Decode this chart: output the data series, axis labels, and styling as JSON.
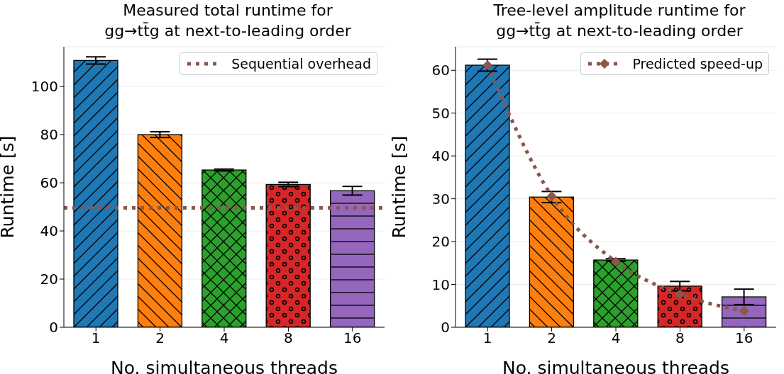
{
  "chart_data": [
    {
      "type": "bar",
      "title": "Measured total runtime for\ngg→tt̄g at next-to-leading order",
      "xlabel": "No. simultaneous threads",
      "ylabel": "Runtime [s]",
      "categories": [
        "1",
        "2",
        "4",
        "8",
        "16"
      ],
      "series": [
        {
          "type": "bar",
          "colors": [
            "#1f77b4",
            "#ff7f0e",
            "#2ca02c",
            "#d62728",
            "#9467bd"
          ],
          "values": [
            110.8,
            80.0,
            65.3,
            59.3,
            56.7
          ],
          "errors": [
            1.5,
            1.2,
            0.4,
            0.9,
            1.8
          ]
        }
      ],
      "ref_lines": [
        {
          "axis": "y",
          "value": 49.6,
          "label": "Sequential overhead",
          "color": "#8c564b",
          "line_style": "dotted"
        }
      ],
      "ylim": [
        0,
        116.5
      ],
      "yticks": [
        0,
        20,
        40,
        60,
        80,
        100
      ],
      "grid": "y",
      "legend": "top right"
    },
    {
      "type": "bar",
      "title": "Tree-level amplitude runtime for\ngg→tt̄g at next-to-leading order",
      "xlabel": "No. simultaneous threads",
      "ylabel": "Runtime [s]",
      "categories": [
        "1",
        "2",
        "4",
        "8",
        "16"
      ],
      "series": [
        {
          "type": "bar",
          "colors": [
            "#1f77b4",
            "#ff7f0e",
            "#2ca02c",
            "#d62728",
            "#9467bd"
          ],
          "values": [
            61.2,
            30.4,
            15.7,
            9.6,
            7.1
          ],
          "errors": [
            1.4,
            1.3,
            0.3,
            1.1,
            1.8
          ]
        },
        {
          "type": "line",
          "name": "Predicted speed-up",
          "color": "#8c564b",
          "values": [
            61.2,
            30.6,
            15.3,
            7.7,
            3.8
          ],
          "marker": "diamond",
          "line_style": "dotted"
        }
      ],
      "ylim": [
        0,
        65.5
      ],
      "yticks": [
        0,
        10,
        20,
        30,
        40,
        50,
        60
      ],
      "grid": "y",
      "legend": "top right"
    }
  ]
}
